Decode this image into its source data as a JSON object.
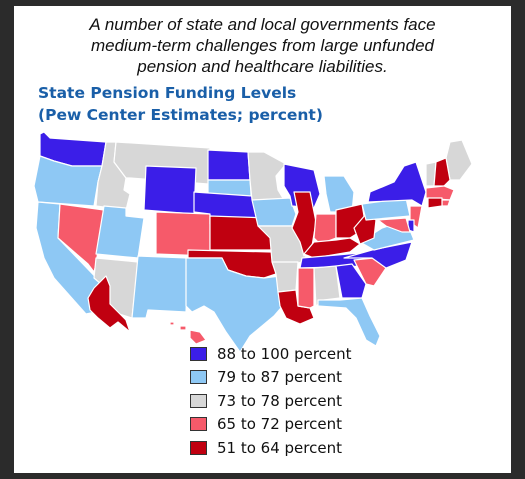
{
  "caption": {
    "line1": "A number of state and  local governments face",
    "line2": "medium-term challenges from large unfunded",
    "line3": "pension and healthcare liabilities."
  },
  "title": {
    "line1": "State Pension Funding Levels",
    "line2": "(Pew Center Estimates; percent)"
  },
  "colors": {
    "c1": "#3b1ee8",
    "c2": "#8ec8f4",
    "c3": "#d7d7d7",
    "c4": "#f65a6a",
    "c5": "#c00010",
    "border": "#ffffff"
  },
  "legend": [
    {
      "key": "c1",
      "label": "88 to 100 percent"
    },
    {
      "key": "c2",
      "label": "79 to 87 percent"
    },
    {
      "key": "c3",
      "label": "73 to 78 percent"
    },
    {
      "key": "c4",
      "label": "65 to 72 percent"
    },
    {
      "key": "c5",
      "label": "51 to 64 percent"
    }
  ],
  "states": {
    "WA": "c1",
    "OR": "c2",
    "CA": "c2",
    "ID": "c3",
    "NV": "c4",
    "MT": "c3",
    "WY": "c1",
    "UT": "c2",
    "AZ": "c3",
    "CO": "c4",
    "NM": "c2",
    "ND": "c1",
    "SD": "c2",
    "NE": "c1",
    "KS": "c5",
    "OK": "c5",
    "TX": "c2",
    "MN": "c3",
    "IA": "c2",
    "MO": "c3",
    "AR": "c3",
    "LA": "c5",
    "WI": "c1",
    "IL": "c5",
    "MI": "c2",
    "IN": "c4",
    "OH": "c5",
    "KY": "c5",
    "TN": "c1",
    "MS": "c4",
    "AL": "c3",
    "GA": "c1",
    "FL": "c2",
    "SC": "c4",
    "NC": "c1",
    "VA": "c2",
    "WV": "c5",
    "PA": "c2",
    "NY": "c1",
    "ME": "c3",
    "VT": "c3",
    "NH": "c5",
    "MA": "c4",
    "RI": "c4",
    "CT": "c5",
    "NJ": "c4",
    "DE": "c1",
    "MD": "c4",
    "AK": "c5",
    "HI": "c4"
  }
}
